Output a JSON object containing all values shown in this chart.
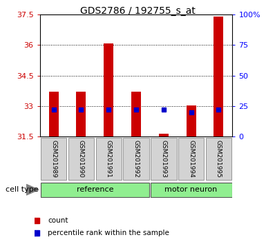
{
  "title": "GDS2786 / 192755_s_at",
  "samples": [
    "GSM201989",
    "GSM201990",
    "GSM201991",
    "GSM201992",
    "GSM201993",
    "GSM201994",
    "GSM201995"
  ],
  "count_values": [
    33.7,
    33.7,
    36.1,
    33.7,
    31.65,
    33.05,
    37.4
  ],
  "percentile_values": [
    22,
    22,
    22,
    22,
    22,
    20,
    22
  ],
  "ymin": 31.5,
  "ymax": 37.5,
  "yticks": [
    31.5,
    33,
    34.5,
    36,
    37.5
  ],
  "y2min": 0,
  "y2max": 100,
  "y2ticks": [
    0,
    25,
    50,
    75,
    100
  ],
  "y2ticklabels": [
    "0",
    "25",
    "50",
    "75",
    "100%"
  ],
  "bar_color": "#CC0000",
  "dot_color": "#0000CC",
  "bar_width": 0.35,
  "legend_count_label": "count",
  "legend_percentile_label": "percentile rank within the sample",
  "cell_type_label": "cell type",
  "group_label_reference": "reference",
  "group_label_motor": "motor neuron",
  "ref_color": "#90EE90",
  "motor_color": "#90EE90",
  "plot_bg": "#FFFFFF",
  "tick_bg": "#D3D3D3",
  "title_fontsize": 10,
  "tick_fontsize": 8,
  "ref_count": 4,
  "motor_count": 3,
  "grid_lines": [
    33,
    34.5,
    36
  ],
  "ytick_labels": [
    "31.5",
    "33",
    "34.5",
    "36",
    "37.5"
  ]
}
